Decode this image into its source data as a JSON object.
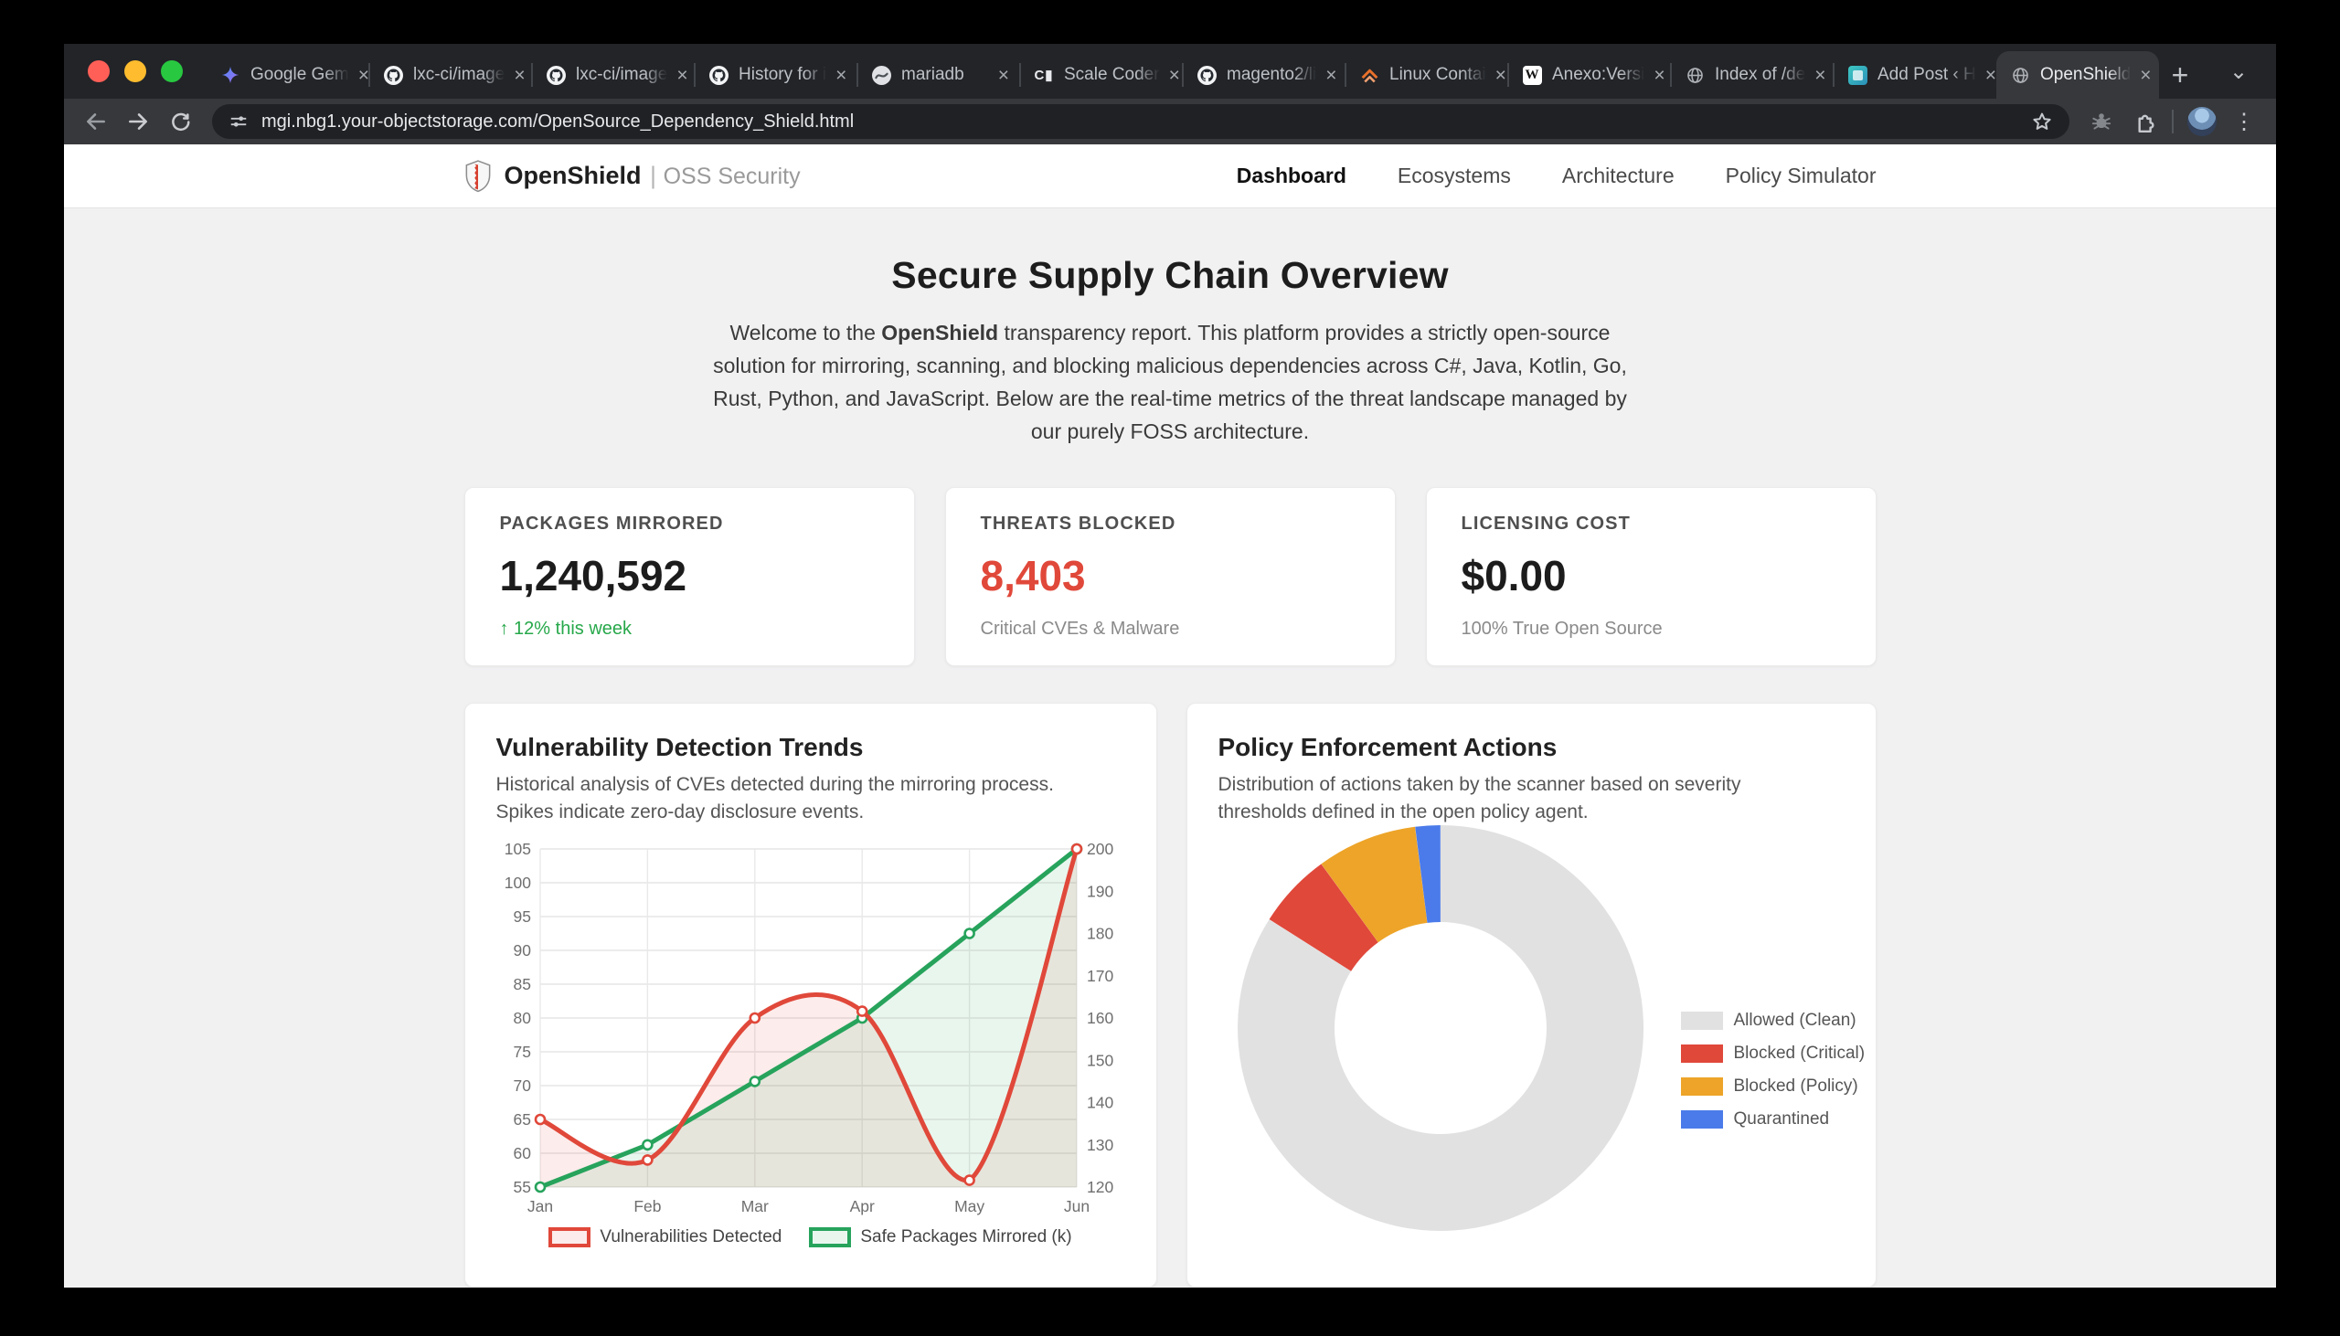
{
  "browser": {
    "tabs": [
      {
        "title": "Google Gem",
        "icon": "gemini-icon"
      },
      {
        "title": "lxc-ci/image",
        "icon": "github-icon"
      },
      {
        "title": "lxc-ci/image",
        "icon": "github-icon"
      },
      {
        "title": "History for i",
        "icon": "github-icon"
      },
      {
        "title": "mariadb",
        "icon": "mariadb-icon"
      },
      {
        "title": "Scale Coder",
        "icon": "terminal-icon"
      },
      {
        "title": "magento2/li",
        "icon": "github-icon"
      },
      {
        "title": "Linux Contai",
        "icon": "lxc-icon"
      },
      {
        "title": "Anexo:Versi",
        "icon": "wikipedia-icon"
      },
      {
        "title": "Index of /de",
        "icon": "globe-icon"
      },
      {
        "title": "Add Post ‹ H",
        "icon": "wordpress-icon"
      },
      {
        "title": "OpenShield",
        "icon": "globe-icon",
        "active": true
      }
    ],
    "url": "mgi.nbg1.your-objectstorage.com/OpenSource_Dependency_Shield.html",
    "icons": {
      "new_tab": "+",
      "tab_search": "⌄",
      "menu": "⋮",
      "close_tab": "×"
    }
  },
  "header": {
    "brand": "OpenShield",
    "divider": "|",
    "tagline": "OSS Security",
    "nav": [
      "Dashboard",
      "Ecosystems",
      "Architecture",
      "Policy Simulator"
    ]
  },
  "hero": {
    "title": "Secure Supply Chain Overview",
    "intro_prefix": "Welcome to the ",
    "intro_brand": "OpenShield",
    "intro_suffix": " transparency report. This platform provides a strictly open-source solution for mirroring, scanning, and blocking malicious dependencies across C#, Java, Kotlin, Go, Rust, Python, and JavaScript. Below are the real-time metrics of the threat landscape managed by our purely FOSS architecture."
  },
  "stats": {
    "cards": [
      {
        "label": "PACKAGES MIRRORED",
        "value": "1,240,592",
        "sub": "↑ 12% this week"
      },
      {
        "label": "THREATS BLOCKED",
        "value": "8,403",
        "sub": "Critical CVEs & Malware"
      },
      {
        "label": "LICENSING COST",
        "value": "$0.00",
        "sub": "100% True Open Source"
      }
    ]
  },
  "chart_data": [
    {
      "type": "line",
      "title": "Vulnerability Detection Trends",
      "subtitle": "Historical analysis of CVEs detected during the mirroring process. Spikes indicate zero-day disclosure events.",
      "categories": [
        "Jan",
        "Feb",
        "Mar",
        "Apr",
        "May",
        "Jun"
      ],
      "series": [
        {
          "name": "Vulnerabilities Detected",
          "axis": "left",
          "color": "#e0483a",
          "fill": "rgba(224,72,58,0.10)",
          "smooth": true,
          "values": [
            65,
            59,
            80,
            81,
            56,
            105
          ]
        },
        {
          "name": "Safe Packages Mirrored (k)",
          "axis": "right",
          "color": "#27a35c",
          "fill": "rgba(39,163,92,0.10)",
          "smooth": false,
          "values": [
            120,
            130,
            145,
            160,
            180,
            200
          ]
        }
      ],
      "left_axis": {
        "min": 55,
        "max": 105,
        "step": 5
      },
      "right_axis": {
        "min": 120,
        "max": 200,
        "step": 10
      },
      "grid": true,
      "legend_position": "bottom"
    },
    {
      "type": "doughnut",
      "title": "Policy Enforcement Actions",
      "subtitle": "Distribution of actions taken by the scanner based on severity thresholds defined in the open policy agent.",
      "labels": [
        "Allowed (Clean)",
        "Blocked (Critical)",
        "Blocked (Policy)",
        "Quarantined"
      ],
      "values": [
        84,
        6,
        8,
        2
      ],
      "colors": [
        "#e1e1e1",
        "#e0483a",
        "#eda428",
        "#4b7bea"
      ],
      "legend_position": "right"
    }
  ]
}
